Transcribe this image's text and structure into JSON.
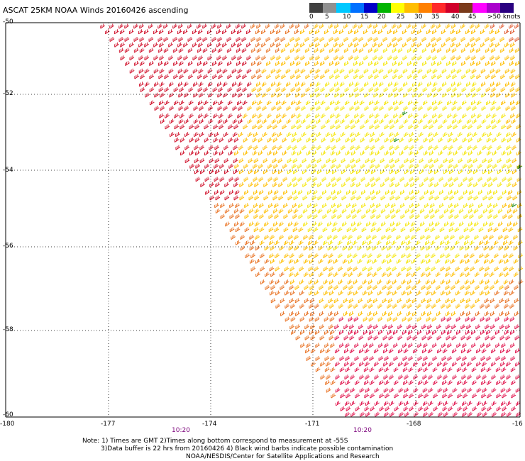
{
  "title": "ASCAT 25KM NOAA Winds 20160426 ascending",
  "colorbar": {
    "labels": [
      "0",
      "5",
      "10",
      "15",
      "20",
      "25",
      "30",
      "35",
      "40",
      "45",
      ">50 knots"
    ],
    "colors": [
      "#404040",
      "#909090",
      "#00c8ff",
      "#0070ff",
      "#0000c8",
      "#00b400",
      "#ffff00",
      "#ffbe00",
      "#ff8000",
      "#ff2a2a",
      "#d0002a",
      "#7a3a1a",
      "#ff00ff",
      "#aa00cc",
      "#2a0080"
    ]
  },
  "map": {
    "lat_labels": [
      "-50",
      "-52",
      "-54",
      "-56",
      "-58",
      "-60"
    ],
    "lon_labels": [
      "-180",
      "-177",
      "-174",
      "-171",
      "-168",
      "-16"
    ],
    "time_labels": [
      "10:20",
      "10:20"
    ]
  },
  "notes": {
    "line1": "Note: 1) Times are GMT 2)Times along bottom correspond to measurement at -55S",
    "line2": "3)Data buffer is 22 hrs from 20160426 4) Black wind barbs indicate possible contamination",
    "line3": "NOAA/NESDIS/Center for Satellite Applications and Research"
  }
}
